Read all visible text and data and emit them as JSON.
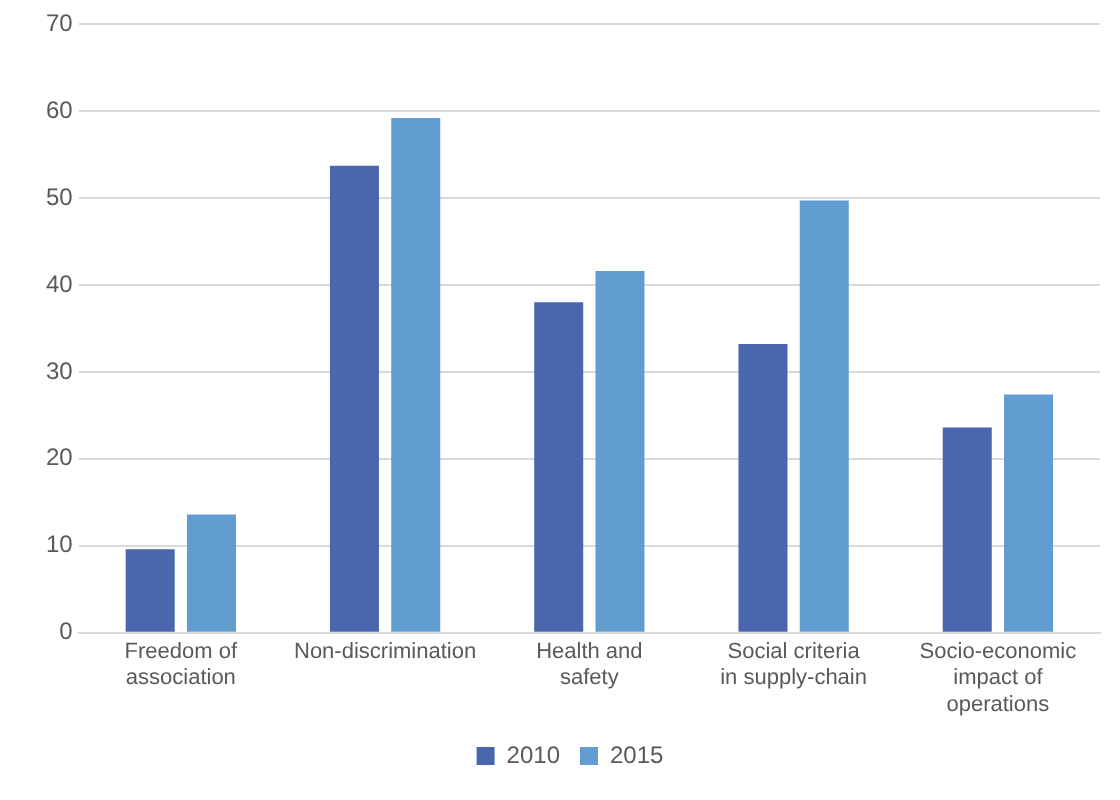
{
  "chart_data": {
    "type": "bar",
    "categories": [
      "Freedom of association",
      "Non-discrimination",
      "Health and safety",
      "Social criteria in supply-chain",
      "Socio-economic impact of operations"
    ],
    "series": [
      {
        "name": "2010",
        "color": "#4a66ad",
        "values": [
          9.6,
          53.7,
          38.0,
          33.2,
          23.6
        ]
      },
      {
        "name": "2015",
        "color": "#619dd0",
        "values": [
          13.6,
          59.2,
          41.6,
          49.7,
          27.4
        ]
      }
    ],
    "ylim": [
      0,
      70
    ],
    "yticks": [
      0,
      10,
      20,
      30,
      40,
      50,
      60,
      70
    ],
    "grid": "y",
    "legend": "bottom"
  }
}
